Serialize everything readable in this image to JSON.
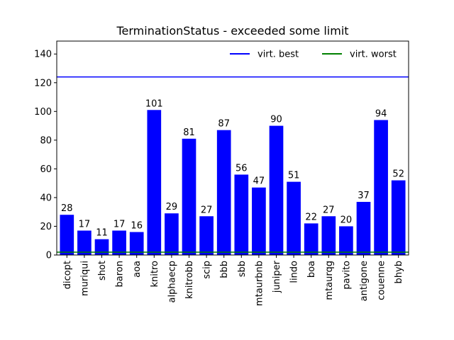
{
  "chart_data": {
    "type": "bar",
    "title": "TerminationStatus - exceeded some limit",
    "xlabel": "",
    "ylabel": "",
    "categories": [
      "dicopt",
      "muriqui",
      "shot",
      "baron",
      "aoa",
      "knitro",
      "alphaecp",
      "knitrobb",
      "scip",
      "bbb",
      "sbb",
      "mtaurbnb",
      "juniper",
      "lindo",
      "boa",
      "mtaurqg",
      "pavito",
      "antigone",
      "couenne",
      "bhyb"
    ],
    "values": [
      28,
      17,
      11,
      17,
      16,
      101,
      29,
      81,
      27,
      87,
      56,
      47,
      90,
      51,
      22,
      27,
      20,
      37,
      94,
      52
    ],
    "bar_color": "#0000ff",
    "ylim": [
      0,
      149
    ],
    "yticks": [
      0,
      20,
      40,
      60,
      80,
      100,
      120,
      140
    ],
    "grid": false,
    "reference_lines": [
      {
        "name": "virt. best",
        "value": 124,
        "color": "#0000ff"
      },
      {
        "name": "virt. worst",
        "value": 2,
        "color": "#008000"
      }
    ],
    "legend": {
      "placement": "top-right",
      "entries": [
        {
          "label": "virt. best",
          "color": "#0000ff"
        },
        {
          "label": "virt. worst",
          "color": "#008000"
        }
      ]
    }
  }
}
